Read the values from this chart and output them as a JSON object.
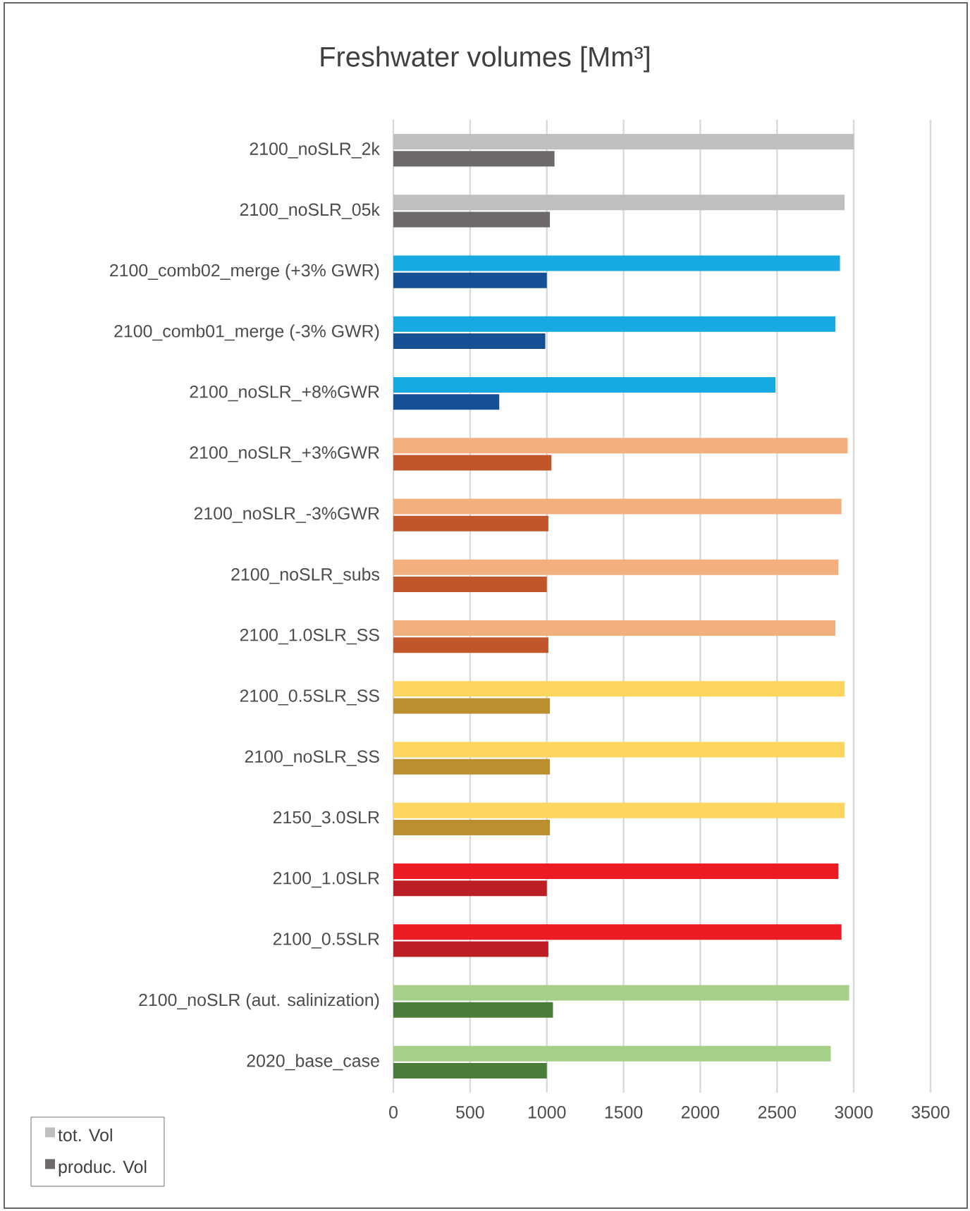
{
  "chart_data": {
    "type": "bar",
    "orientation": "horizontal",
    "title": "Freshwater volumes [Mm³]",
    "categories": [
      "2100_noSLR_2k",
      "2100_noSLR_05k",
      "2100_comb02_merge (+3% GWR)",
      "2100_comb01_merge (-3% GWR)",
      "2100_noSLR_+8%GWR",
      "2100_noSLR_+3%GWR",
      "2100_noSLR_-3%GWR",
      "2100_noSLR_subs",
      "2100_1.0SLR_SS",
      "2100_0.5SLR_SS",
      "2100_noSLR_SS",
      "2150_3.0SLR",
      "2100_1.0SLR",
      "2100_0.5SLR",
      "2100_noSLR (aut. salinization)",
      "2020_base_case"
    ],
    "series": [
      {
        "name": "tot. Vol",
        "color": "#bfbfbf",
        "values": [
          3000,
          2940,
          2910,
          2880,
          2490,
          2960,
          2920,
          2900,
          2880,
          2940,
          2940,
          2940,
          2900,
          2920,
          2970,
          2850
        ],
        "colors": [
          "#bfbfbf",
          "#bfbfbf",
          "#17a9e1",
          "#17a9e1",
          "#17a9e1",
          "#f4af7e",
          "#f4af7e",
          "#f4af7e",
          "#f4af7e",
          "#fed55f",
          "#fed55f",
          "#fed55f",
          "#ed1c24",
          "#ed1c24",
          "#a6d08a",
          "#a6d08a"
        ]
      },
      {
        "name": "produc. Vol",
        "color": "#6d6a69",
        "values": [
          1050,
          1020,
          1000,
          990,
          690,
          1030,
          1010,
          1000,
          1010,
          1020,
          1020,
          1020,
          1000,
          1010,
          1040,
          1000
        ],
        "colors": [
          "#6d6a69",
          "#6d6a69",
          "#154f94",
          "#154f94",
          "#154f94",
          "#c0562a",
          "#c0562a",
          "#c0562a",
          "#c0562a",
          "#bb8e30",
          "#bb8e30",
          "#bb8e30",
          "#bb1e23",
          "#bb1e23",
          "#4a7d3a",
          "#4a7d3a"
        ]
      }
    ],
    "xlim": [
      0,
      3500
    ],
    "xticks": [
      0,
      500,
      1000,
      1500,
      2000,
      2500,
      3000,
      3500
    ],
    "grid": "x",
    "legend": "bottom left"
  }
}
